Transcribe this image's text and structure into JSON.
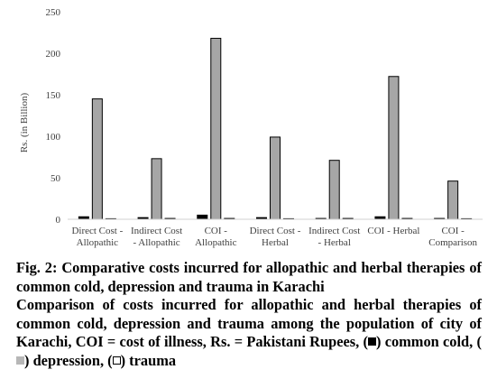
{
  "chart_data": {
    "type": "bar",
    "ylabel": "Rs. (in Billion)",
    "ylim": [
      0,
      250
    ],
    "yticks": [
      0,
      50,
      100,
      150,
      200,
      250
    ],
    "grid": false,
    "categories": [
      [
        "Direct Cost -",
        "Allopathic"
      ],
      [
        "Indirect Cost",
        "- Allopathic"
      ],
      [
        "COI -",
        "Allopathic"
      ],
      [
        "Direct Cost -",
        "Herbal"
      ],
      [
        "Indirect Cost",
        "- Herbal"
      ],
      [
        "COI - Herbal"
      ],
      [
        "COI -",
        "Comparison"
      ]
    ],
    "series": [
      {
        "name": "common cold",
        "color": "#000000",
        "values": [
          3,
          2,
          5,
          2,
          1,
          3,
          1
        ]
      },
      {
        "name": "depression",
        "color": "#a6a6a6",
        "values": [
          145,
          73,
          218,
          99,
          71,
          172,
          46
        ]
      },
      {
        "name": "trauma",
        "color": "#000000",
        "values": [
          0.3,
          1,
          1,
          0.3,
          1,
          1,
          0.3
        ]
      }
    ]
  },
  "caption": {
    "title": "Fig. 2: Comparative costs incurred for allopathic and herbal therapies of common cold, depression and trauma in Karachi",
    "body_text": "Comparison of costs incurred for allopathic and herbal therapies of common cold, depression and trauma among the population of city of Karachi, COI = cost of illness, Rs. = Pakistani Rupees,",
    "legend_cold": "common cold,",
    "legend_depression": "depression,",
    "legend_trauma": "trauma"
  }
}
